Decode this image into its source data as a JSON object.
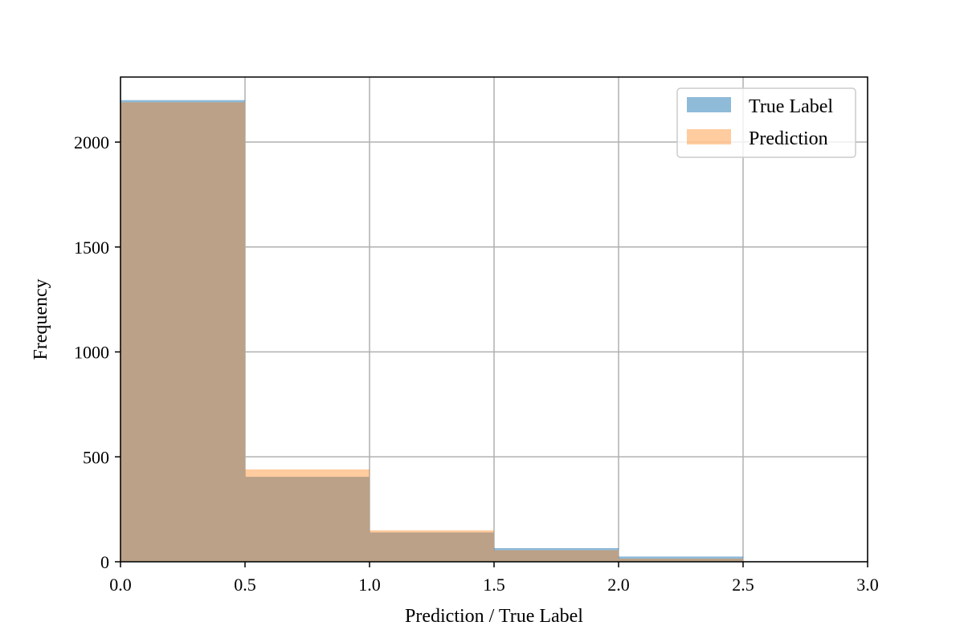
{
  "chart_data": {
    "type": "bar",
    "histogram": true,
    "bin_edges": [
      0.0,
      0.5,
      1.0,
      1.5,
      2.0,
      2.5
    ],
    "series": [
      {
        "name": "True Label",
        "values": [
          2200,
          405,
          140,
          65,
          25
        ],
        "color": "#1f77b4",
        "opacity": 0.5
      },
      {
        "name": "Prediction",
        "values": [
          2190,
          440,
          150,
          55,
          15
        ],
        "color": "#ff7f0e",
        "opacity": 0.4
      }
    ],
    "overlap_color": "#baa187",
    "xlabel": "Prediction / True Label",
    "ylabel": "Frequency",
    "xlim": [
      0.0,
      3.0
    ],
    "ylim": [
      0,
      2310
    ],
    "xticks": [
      0.0,
      0.5,
      1.0,
      1.5,
      2.0,
      2.5,
      3.0
    ],
    "xtick_labels": [
      "0.0",
      "0.5",
      "1.0",
      "1.5",
      "2.0",
      "2.5",
      "3.0"
    ],
    "yticks": [
      0,
      500,
      1000,
      1500,
      2000
    ],
    "ytick_labels": [
      "0",
      "500",
      "1000",
      "1500",
      "2000"
    ],
    "grid": true,
    "grid_color": "#b0b0b0",
    "legend_position": "top-right"
  }
}
